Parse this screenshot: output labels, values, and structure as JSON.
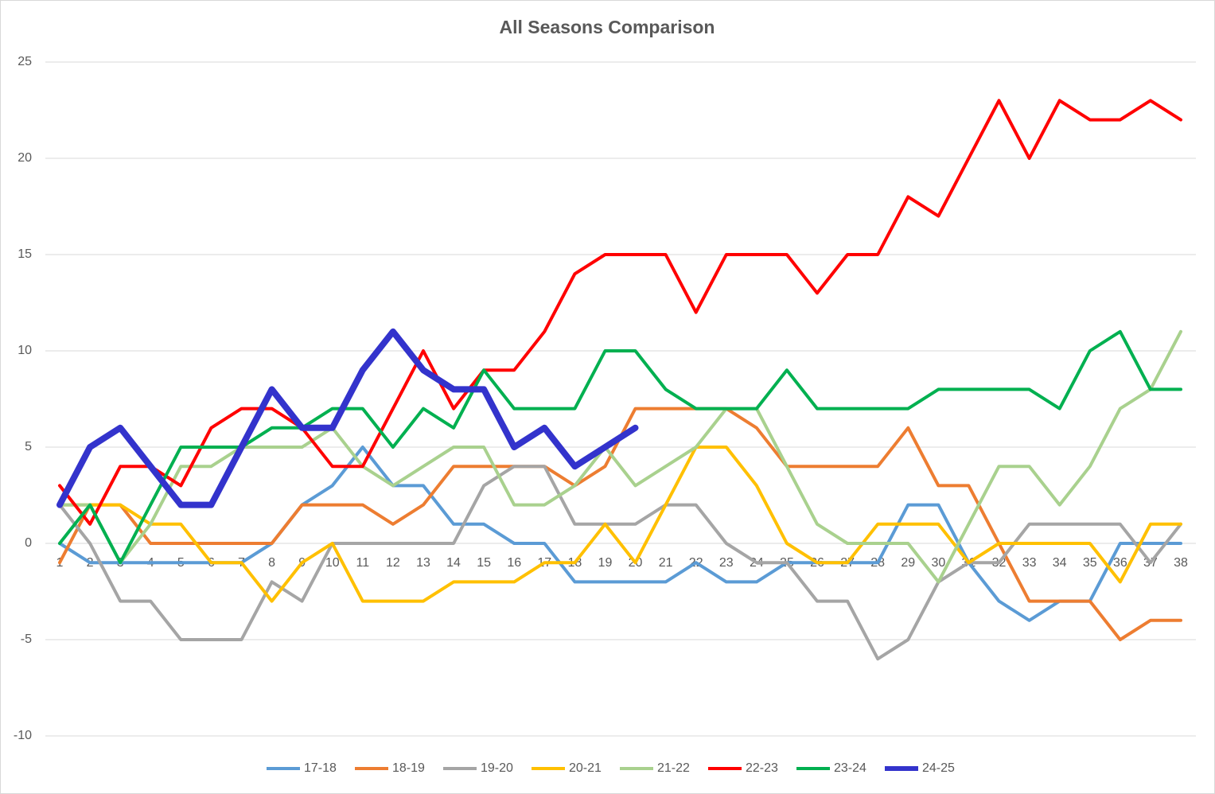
{
  "chart_data": {
    "type": "line",
    "title": "All Seasons Comparison",
    "categories": [
      1,
      2,
      3,
      4,
      5,
      6,
      7,
      8,
      9,
      10,
      11,
      12,
      13,
      14,
      15,
      16,
      17,
      18,
      19,
      20,
      21,
      22,
      23,
      24,
      25,
      26,
      27,
      28,
      29,
      30,
      31,
      32,
      33,
      34,
      35,
      36,
      37,
      38
    ],
    "ylim": [
      -10,
      25
    ],
    "yticks": [
      -10,
      -5,
      0,
      5,
      10,
      15,
      20,
      25
    ],
    "grid": true,
    "legend": "bottom",
    "series": [
      {
        "name": "17-18",
        "color": "#5b9bd5",
        "values": [
          0,
          -1,
          -1,
          -1,
          -1,
          -1,
          -1,
          0,
          2,
          3,
          5,
          3,
          3,
          1,
          1,
          0,
          0,
          -2,
          -2,
          -2,
          -2,
          -1,
          -2,
          -2,
          -1,
          -1,
          -1,
          -1,
          2,
          2,
          -1,
          -3,
          -4,
          -3,
          -3,
          0,
          0,
          0
        ]
      },
      {
        "name": "18-19",
        "color": "#ed7d31",
        "values": [
          -1,
          2,
          2,
          0,
          0,
          0,
          0,
          0,
          2,
          2,
          2,
          1,
          2,
          4,
          4,
          4,
          4,
          3,
          4,
          7,
          7,
          7,
          7,
          6,
          4,
          4,
          4,
          4,
          6,
          3,
          3,
          0,
          -3,
          -3,
          -3,
          -5,
          -4,
          -4
        ]
      },
      {
        "name": "19-20",
        "color": "#a5a5a5",
        "values": [
          2,
          0,
          -3,
          -3,
          -5,
          -5,
          -5,
          -2,
          -3,
          0,
          0,
          0,
          0,
          0,
          3,
          4,
          4,
          1,
          1,
          1,
          2,
          2,
          0,
          -1,
          -1,
          -3,
          -3,
          -6,
          -5,
          -2,
          -1,
          -1,
          1,
          1,
          1,
          1,
          -1,
          1
        ]
      },
      {
        "name": "20-21",
        "color": "#ffc000",
        "values": [
          2,
          2,
          2,
          1,
          1,
          -1,
          -1,
          -3,
          -1,
          0,
          -3,
          -3,
          -3,
          -2,
          -2,
          -2,
          -1,
          -1,
          1,
          -1,
          2,
          5,
          5,
          3,
          0,
          -1,
          -1,
          1,
          1,
          1,
          -1,
          0,
          0,
          0,
          0,
          -2,
          1,
          1
        ]
      },
      {
        "name": "21-22",
        "color": "#a9d18e",
        "values": [
          2,
          2,
          -1,
          1,
          4,
          4,
          5,
          5,
          5,
          6,
          4,
          3,
          4,
          5,
          5,
          2,
          2,
          3,
          5,
          3,
          4,
          5,
          7,
          7,
          4,
          1,
          0,
          0,
          0,
          -2,
          1,
          4,
          4,
          2,
          4,
          7,
          8,
          11
        ]
      },
      {
        "name": "22-23",
        "color": "#ff0000",
        "values": [
          3,
          1,
          4,
          4,
          3,
          6,
          7,
          7,
          6,
          4,
          4,
          7,
          10,
          7,
          9,
          9,
          11,
          14,
          15,
          15,
          15,
          12,
          15,
          15,
          15,
          13,
          15,
          15,
          18,
          17,
          20,
          23,
          20,
          23,
          22,
          22,
          23,
          22
        ]
      },
      {
        "name": "23-24",
        "color": "#00b050",
        "values": [
          0,
          2,
          -1,
          2,
          5,
          5,
          5,
          6,
          6,
          7,
          7,
          5,
          7,
          6,
          9,
          7,
          7,
          7,
          10,
          10,
          8,
          7,
          7,
          7,
          9,
          7,
          7,
          7,
          7,
          8,
          8,
          8,
          8,
          7,
          10,
          11,
          8,
          8
        ]
      },
      {
        "name": "24-25",
        "color": "#3333cc",
        "values": [
          2,
          5,
          6,
          4,
          2,
          2,
          5,
          8,
          6,
          6,
          9,
          11,
          9,
          8,
          8,
          5,
          6,
          4,
          5,
          6,
          null,
          null,
          null,
          null,
          null,
          null,
          null,
          null,
          null,
          null,
          null,
          null,
          null,
          null,
          null,
          null,
          null,
          null
        ]
      }
    ]
  }
}
